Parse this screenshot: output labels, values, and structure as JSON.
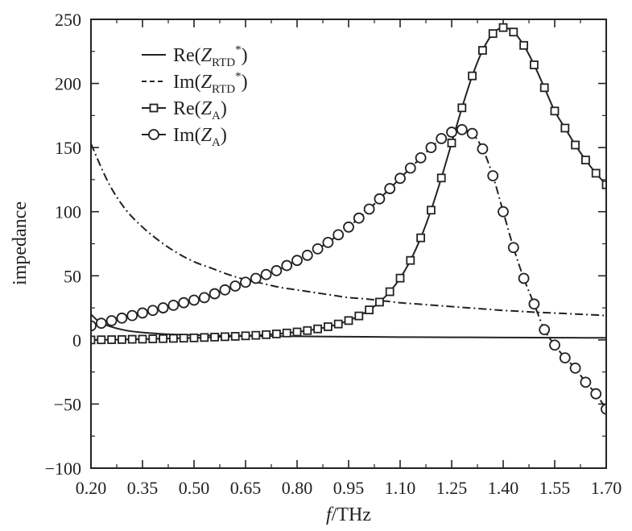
{
  "chart_data": {
    "type": "line",
    "xlabel_italic": "f",
    "xlabel_rest": "/THz",
    "ylabel": "impedance",
    "xlim": [
      0.2,
      1.7
    ],
    "ylim": [
      -100,
      250
    ],
    "grid": false,
    "legend_position": "top-left",
    "x_ticks": [
      "0.20",
      "0.35",
      "0.50",
      "0.65",
      "0.80",
      "0.95",
      "1.10",
      "1.25",
      "1.40",
      "1.55",
      "1.70"
    ],
    "y_ticks": [
      "250",
      "200",
      "150",
      "100",
      "50",
      "0",
      "−50",
      "−100"
    ],
    "series": [
      {
        "name": "Re(ZRTD*)",
        "legend": {
          "pre": "Re(",
          "var": "Z",
          "sub": "RTD",
          "sup": "*",
          "post": ")"
        },
        "line_style": "solid",
        "marker": "none",
        "x": [
          0.2,
          0.22,
          0.25,
          0.3,
          0.35,
          0.4,
          0.45,
          0.5,
          0.55,
          0.6,
          0.7,
          0.8,
          0.9,
          1.0,
          1.1,
          1.2,
          1.3,
          1.4,
          1.5,
          1.6,
          1.7
        ],
        "y": [
          20,
          15,
          11,
          7.5,
          5.8,
          4.8,
          4.2,
          3.8,
          3.5,
          3.3,
          3.0,
          2.8,
          2.6,
          2.4,
          2.2,
          2.1,
          2.0,
          1.9,
          1.8,
          1.7,
          1.6
        ]
      },
      {
        "name": "Im(ZRTD*)",
        "legend": {
          "pre": "Im(",
          "var": "Z",
          "sub": "RTD",
          "sup": "*",
          "post": ")"
        },
        "line_style": "dashdot",
        "marker": "none",
        "x": [
          0.2,
          0.25,
          0.3,
          0.35,
          0.4,
          0.45,
          0.5,
          0.55,
          0.6,
          0.65,
          0.7,
          0.75,
          0.8,
          0.85,
          0.9,
          0.95,
          1.0,
          1.05,
          1.1,
          1.15,
          1.2,
          1.25,
          1.3,
          1.35,
          1.4,
          1.45,
          1.5,
          1.55,
          1.6,
          1.65,
          1.7
        ],
        "y": [
          153,
          123,
          102,
          88,
          77,
          68,
          61,
          56,
          51,
          47,
          44,
          41,
          39,
          37,
          35,
          33,
          32,
          30.5,
          29,
          28,
          27,
          26,
          25,
          24,
          23,
          22.3,
          21.5,
          21,
          20.3,
          19.7,
          19
        ]
      },
      {
        "name": "Re(ZA)",
        "legend": {
          "pre": "Re(",
          "var": "Z",
          "sub": "A",
          "sup": "",
          "post": ")"
        },
        "line_style": "solid",
        "marker": "square",
        "x": [
          0.2,
          0.23,
          0.26,
          0.29,
          0.32,
          0.35,
          0.38,
          0.41,
          0.44,
          0.47,
          0.5,
          0.53,
          0.56,
          0.59,
          0.62,
          0.65,
          0.68,
          0.71,
          0.74,
          0.77,
          0.8,
          0.83,
          0.86,
          0.89,
          0.92,
          0.95,
          0.98,
          1.01,
          1.04,
          1.07,
          1.1,
          1.13,
          1.16,
          1.19,
          1.22,
          1.25,
          1.28,
          1.31,
          1.34,
          1.37,
          1.4,
          1.43,
          1.46,
          1.49,
          1.52,
          1.55,
          1.58,
          1.61,
          1.64,
          1.67,
          1.7
        ],
        "y": [
          0.0,
          0.1,
          0.2,
          0.3,
          0.5,
          0.6,
          0.8,
          1.0,
          1.2,
          1.4,
          1.6,
          1.9,
          2.2,
          2.5,
          2.8,
          3.2,
          3.6,
          4.1,
          4.7,
          5.4,
          6.2,
          7.3,
          8.6,
          10.3,
          12.4,
          15.1,
          18.7,
          23.4,
          29.5,
          37.6,
          48.2,
          62.0,
          79.6,
          101.2,
          126.3,
          153.6,
          181.0,
          205.9,
          225.8,
          238.9,
          243.6,
          240.1,
          229.7,
          214.5,
          196.7,
          178.5,
          165.2,
          152.0,
          140.3,
          130.0,
          121.0
        ]
      },
      {
        "name": "Im(ZA)",
        "legend": {
          "pre": "Im(",
          "var": "Z",
          "sub": "A",
          "sup": "",
          "post": ")"
        },
        "line_style": "dashdot",
        "marker": "circle",
        "x": [
          0.2,
          0.23,
          0.26,
          0.29,
          0.32,
          0.35,
          0.38,
          0.41,
          0.44,
          0.47,
          0.5,
          0.53,
          0.56,
          0.59,
          0.62,
          0.65,
          0.68,
          0.71,
          0.74,
          0.77,
          0.8,
          0.83,
          0.86,
          0.89,
          0.92,
          0.95,
          0.98,
          1.01,
          1.04,
          1.07,
          1.1,
          1.13,
          1.16,
          1.19,
          1.22,
          1.25,
          1.28,
          1.31,
          1.34,
          1.37,
          1.4,
          1.43,
          1.46,
          1.49,
          1.52,
          1.55,
          1.58,
          1.61,
          1.64,
          1.67,
          1.7
        ],
        "y": [
          11,
          13,
          15,
          17,
          19,
          21,
          23,
          25,
          27,
          29,
          31,
          33,
          36,
          39,
          42,
          45,
          48,
          51,
          54,
          58,
          62,
          66,
          71,
          76,
          82,
          88,
          95,
          102,
          110,
          118,
          126,
          134,
          142,
          150,
          157,
          162,
          164,
          161,
          149,
          128,
          100,
          72,
          48,
          28,
          8,
          -4,
          -14,
          -22,
          -33,
          -42,
          -54
        ]
      }
    ]
  }
}
